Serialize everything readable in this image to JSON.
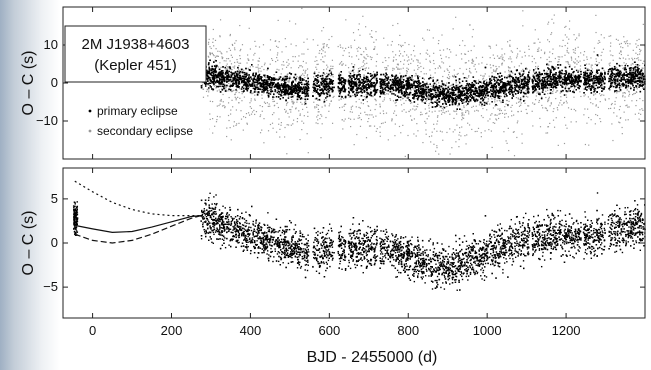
{
  "chart_data": [
    {
      "type": "scatter",
      "panel": "top",
      "title_lines": [
        "2M J1938+4603",
        "(Kepler 451)"
      ],
      "xlabel": "",
      "ylabel": "O – C (s)",
      "xlim": [
        -75,
        1400
      ],
      "ylim": [
        -20,
        20
      ],
      "yticks": [
        10,
        0,
        -10
      ],
      "ytick_labels": [
        "10",
        "0",
        "−10"
      ],
      "xticks": [
        0,
        200,
        400,
        600,
        800,
        1000,
        1200
      ],
      "legend": {
        "placement": "left",
        "entries": [
          {
            "label": "primary eclipse",
            "marker": "black dot"
          },
          {
            "label": "secondary eclipse",
            "marker": "gray dot"
          }
        ]
      },
      "series": [
        {
          "name": "primary eclipse",
          "color": "#000000",
          "scatter_sd": 1.5,
          "trend": [
            [
              275,
              2.2
            ],
            [
              400,
              0.5
            ],
            [
              500,
              -1.5
            ],
            [
              650,
              -0.5
            ],
            [
              800,
              -1.0
            ],
            [
              900,
              -3.5
            ],
            [
              1000,
              -1.5
            ],
            [
              1150,
              0.5
            ],
            [
              1300,
              1.0
            ],
            [
              1400,
              1.5
            ]
          ]
        },
        {
          "name": "secondary eclipse",
          "color": "#9a9a9a",
          "scatter_sd": 6.5,
          "trend": [
            [
              275,
              2.2
            ],
            [
              400,
              0.5
            ],
            [
              500,
              -1.5
            ],
            [
              650,
              -0.5
            ],
            [
              800,
              -1.0
            ],
            [
              900,
              -3.5
            ],
            [
              1000,
              -1.5
            ],
            [
              1150,
              0.5
            ],
            [
              1300,
              1.0
            ],
            [
              1400,
              1.5
            ]
          ]
        }
      ],
      "data_gaps": [
        [
          548,
          558
        ],
        [
          612,
          622
        ],
        [
          642,
          648
        ],
        [
          722,
          728
        ],
        [
          1108,
          1114
        ],
        [
          1238,
          1244
        ],
        [
          1300,
          1306
        ]
      ]
    },
    {
      "type": "scatter",
      "panel": "bottom",
      "xlabel": "BJD - 2455000 (d)",
      "ylabel": "O – C (s)",
      "xlim": [
        -75,
        1400
      ],
      "ylim": [
        -8.5,
        8.5
      ],
      "yticks": [
        5,
        0,
        -5
      ],
      "ytick_labels": [
        "5",
        "0",
        "−5"
      ],
      "xticks": [
        0,
        200,
        400,
        600,
        800,
        1000,
        1200
      ],
      "xtick_labels": [
        "0",
        "200",
        "400",
        "600",
        "800",
        "1000",
        "1200"
      ],
      "series": [
        {
          "name": "data",
          "color": "#000000",
          "scatter_sd": 1.1,
          "trend": [
            [
              -45,
              2.8
            ],
            [
              -30,
              2.5
            ],
            [
              275,
              3.0
            ],
            [
              400,
              1.0
            ],
            [
              500,
              -0.5
            ],
            [
              560,
              -1.0
            ],
            [
              700,
              -0.5
            ],
            [
              800,
              -1.5
            ],
            [
              900,
              -3.0
            ],
            [
              1000,
              -1.0
            ],
            [
              1100,
              0.5
            ],
            [
              1250,
              0.7
            ],
            [
              1400,
              2.0
            ]
          ]
        }
      ],
      "model_curves": [
        {
          "style": "solid",
          "points": [
            [
              -45,
              2.0
            ],
            [
              0,
              1.6
            ],
            [
              50,
              1.2
            ],
            [
              100,
              1.3
            ],
            [
              150,
              1.8
            ],
            [
              200,
              2.4
            ],
            [
              250,
              3.0
            ],
            [
              275,
              3.1
            ]
          ]
        },
        {
          "style": "dashed",
          "points": [
            [
              -45,
              1.0
            ],
            [
              0,
              0.3
            ],
            [
              50,
              0.0
            ],
            [
              100,
              0.3
            ],
            [
              150,
              1.0
            ],
            [
              200,
              1.9
            ],
            [
              250,
              2.8
            ],
            [
              275,
              3.1
            ]
          ]
        },
        {
          "style": "dotted",
          "points": [
            [
              -45,
              7.0
            ],
            [
              0,
              5.8
            ],
            [
              50,
              4.6
            ],
            [
              100,
              3.8
            ],
            [
              150,
              3.3
            ],
            [
              200,
              3.1
            ],
            [
              250,
              3.1
            ],
            [
              275,
              3.1
            ]
          ]
        }
      ],
      "data_gaps": [
        [
          548,
          558
        ],
        [
          612,
          622
        ],
        [
          642,
          648
        ],
        [
          722,
          728
        ],
        [
          1108,
          1114
        ],
        [
          1238,
          1244
        ],
        [
          1300,
          1306
        ]
      ]
    }
  ]
}
